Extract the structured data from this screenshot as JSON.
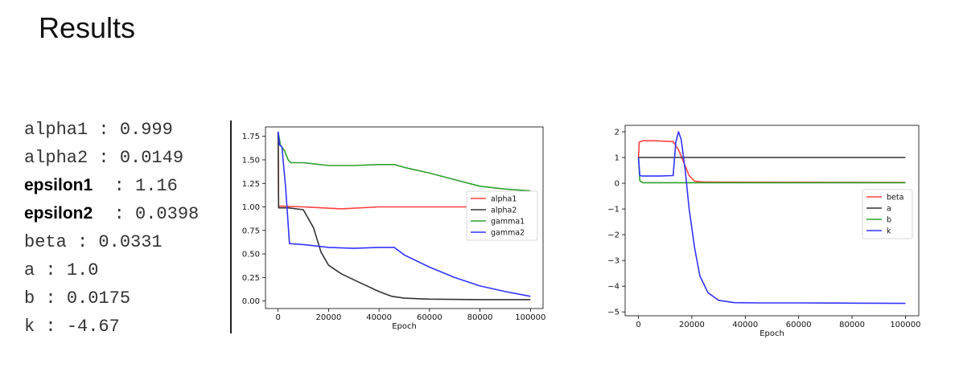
{
  "page": {
    "title": "Results"
  },
  "params": [
    {
      "name": "alpha1",
      "sep": " : ",
      "value": "0.999",
      "style": "mono"
    },
    {
      "name": "alpha2",
      "sep": " : ",
      "value": "0.0149",
      "style": "mono"
    },
    {
      "name": "epsilon1",
      "sep": "  : ",
      "value": "1.16",
      "style": "bold"
    },
    {
      "name": "epsilon2",
      "sep": "  : ",
      "value": "0.0398",
      "style": "bold"
    },
    {
      "name": "beta",
      "sep": " : ",
      "value": "0.0331",
      "style": "mono"
    },
    {
      "name": "a",
      "sep": " : ",
      "value": "1.0",
      "style": "mono"
    },
    {
      "name": "b",
      "sep": " : ",
      "value": "0.0175",
      "style": "mono"
    },
    {
      "name": "k",
      "sep": " : ",
      "value": "-4.67",
      "style": "mono"
    }
  ],
  "chart_data": [
    {
      "type": "line",
      "xlabel": "Epoch",
      "ylabel": "",
      "xlim": [
        -5000,
        105000
      ],
      "ylim": [
        -0.08,
        1.85
      ],
      "xticks": [
        0,
        20000,
        40000,
        60000,
        80000,
        100000
      ],
      "xtick_labels": [
        "0",
        "20000",
        "40000",
        "60000",
        "80000",
        "100000"
      ],
      "yticks": [
        0,
        0.25,
        0.5,
        0.75,
        1.0,
        1.25,
        1.5,
        1.75
      ],
      "ytick_labels": [
        "0.00",
        "0.25",
        "0.50",
        "0.75",
        "1.00",
        "1.25",
        "1.50",
        "1.75"
      ],
      "grid": false,
      "legend_position": "center-right",
      "series": [
        {
          "name": "alpha1",
          "color": "#ff4040",
          "x": [
            0,
            200,
            10000,
            25000,
            40000,
            60000,
            80000,
            100000
          ],
          "y": [
            1.8,
            1.01,
            1.0,
            0.98,
            1.0,
            1.0,
            1.0,
            1.0
          ]
        },
        {
          "name": "alpha2",
          "color": "#333333",
          "x": [
            0,
            200,
            4000,
            10000,
            14000,
            17000,
            20000,
            25000,
            32000,
            40000,
            45000,
            50000,
            60000,
            80000,
            100000
          ],
          "y": [
            1.8,
            0.99,
            0.99,
            0.97,
            0.78,
            0.52,
            0.38,
            0.29,
            0.2,
            0.1,
            0.05,
            0.03,
            0.02,
            0.015,
            0.015
          ]
        },
        {
          "name": "gamma1",
          "color": "#2ca02c",
          "x": [
            0,
            1000,
            2500,
            4000,
            5000,
            10000,
            20000,
            30000,
            40000,
            46000,
            50000,
            60000,
            70000,
            80000,
            90000,
            100000
          ],
          "y": [
            1.8,
            1.65,
            1.6,
            1.5,
            1.47,
            1.47,
            1.44,
            1.44,
            1.45,
            1.45,
            1.42,
            1.36,
            1.29,
            1.22,
            1.19,
            1.17
          ]
        },
        {
          "name": "gamma2",
          "color": "#3333ff",
          "x": [
            0,
            500,
            1500,
            3000,
            4500,
            10000,
            20000,
            30000,
            40000,
            46000,
            50000,
            60000,
            70000,
            80000,
            90000,
            100000
          ],
          "y": [
            1.8,
            1.66,
            1.64,
            1.2,
            0.61,
            0.6,
            0.57,
            0.56,
            0.57,
            0.57,
            0.49,
            0.36,
            0.25,
            0.16,
            0.1,
            0.05
          ]
        }
      ]
    },
    {
      "type": "line",
      "xlabel": "Epoch",
      "ylabel": "",
      "xlim": [
        -5000,
        105000
      ],
      "ylim": [
        -5.15,
        2.25
      ],
      "xticks": [
        0,
        20000,
        40000,
        60000,
        80000,
        100000
      ],
      "xtick_labels": [
        "0",
        "20000",
        "40000",
        "60000",
        "80000",
        "100000"
      ],
      "yticks": [
        -5,
        -4,
        -3,
        -2,
        -1,
        0,
        1,
        2
      ],
      "ytick_labels": [
        "−5",
        "−4",
        "−3",
        "−2",
        "−1",
        "0",
        "1",
        "2"
      ],
      "grid": false,
      "legend_position": "center-right",
      "series": [
        {
          "name": "beta",
          "color": "#ff4040",
          "x": [
            0,
            300,
            1500,
            6000,
            13000,
            15000,
            17000,
            19000,
            21000,
            25000,
            40000,
            100000
          ],
          "y": [
            1.0,
            1.6,
            1.65,
            1.65,
            1.62,
            1.3,
            0.8,
            0.3,
            0.08,
            0.05,
            0.04,
            0.03
          ]
        },
        {
          "name": "a",
          "color": "#333333",
          "x": [
            0,
            100000
          ],
          "y": [
            1.0,
            1.0
          ]
        },
        {
          "name": "b",
          "color": "#2ca02c",
          "x": [
            0,
            500,
            1500,
            100000
          ],
          "y": [
            1.0,
            0.1,
            0.02,
            0.02
          ]
        },
        {
          "name": "k",
          "color": "#3333ff",
          "x": [
            0,
            500,
            1500,
            8000,
            13000,
            14000,
            15000,
            16000,
            17500,
            19000,
            21000,
            23000,
            26000,
            30000,
            36000,
            45000,
            60000,
            80000,
            100000
          ],
          "y": [
            1.0,
            0.3,
            0.28,
            0.28,
            0.3,
            1.6,
            2.0,
            1.7,
            0.5,
            -1.0,
            -2.5,
            -3.6,
            -4.25,
            -4.55,
            -4.64,
            -4.65,
            -4.65,
            -4.66,
            -4.67
          ]
        }
      ]
    }
  ]
}
